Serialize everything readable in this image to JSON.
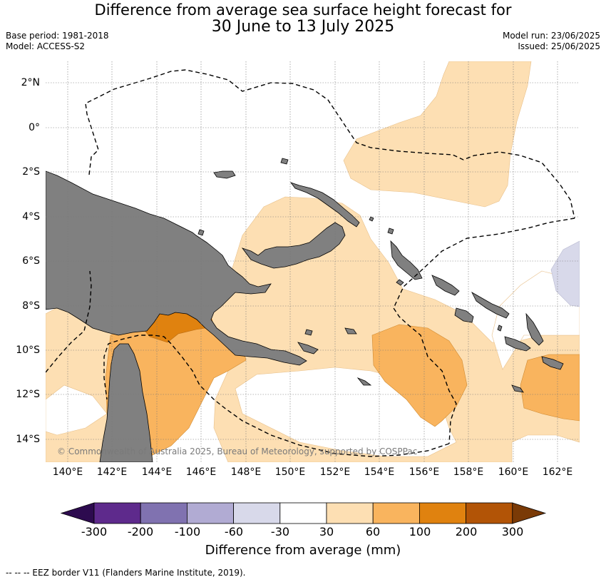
{
  "title": {
    "line1": "Difference from average sea surface height forecast for",
    "line2": "30 June to 13 July 2025"
  },
  "meta_left": {
    "base_period": "Base period: 1981-2018",
    "model": "Model: ACCESS-S2"
  },
  "meta_right": {
    "model_run": "Model run: 23/06/2025",
    "issued": "Issued: 25/06/2025"
  },
  "map": {
    "lat_labels": [
      "2°N",
      "0°",
      "2°S",
      "4°S",
      "6°S",
      "8°S",
      "10°S",
      "12°S",
      "14°S"
    ],
    "lon_labels": [
      "140°E",
      "142°E",
      "144°E",
      "146°E",
      "148°E",
      "150°E",
      "152°E",
      "154°E",
      "156°E",
      "158°E",
      "160°E",
      "162°E"
    ],
    "copyright": "© Commonwealth of Australia 2025, Bureau of Meteorology, supported by COSPPac"
  },
  "colorbar": {
    "title": "Difference from average (mm)",
    "tick_labels": [
      "-300",
      "-200",
      "-100",
      "-60",
      "-30",
      "30",
      "60",
      "100",
      "200",
      "300"
    ],
    "colors": [
      "#2d0b4f",
      "#5e2a8c",
      "#8072b0",
      "#b1abd3",
      "#d8d9ea",
      "#ffffff",
      "#fddfb3",
      "#f9b45e",
      "#e0820f",
      "#b25406",
      "#7a3a06"
    ]
  },
  "palette": {
    "land": "#808080",
    "anom_30_60": "#fddfb3",
    "anom_60_100": "#f9b45e",
    "anom_100_200": "#e0820f",
    "anom_neg_30_60": "#d8d9ea"
  },
  "footer": "--  --  -- EEZ border V11 (Flanders Marine Institute, 2019)."
}
